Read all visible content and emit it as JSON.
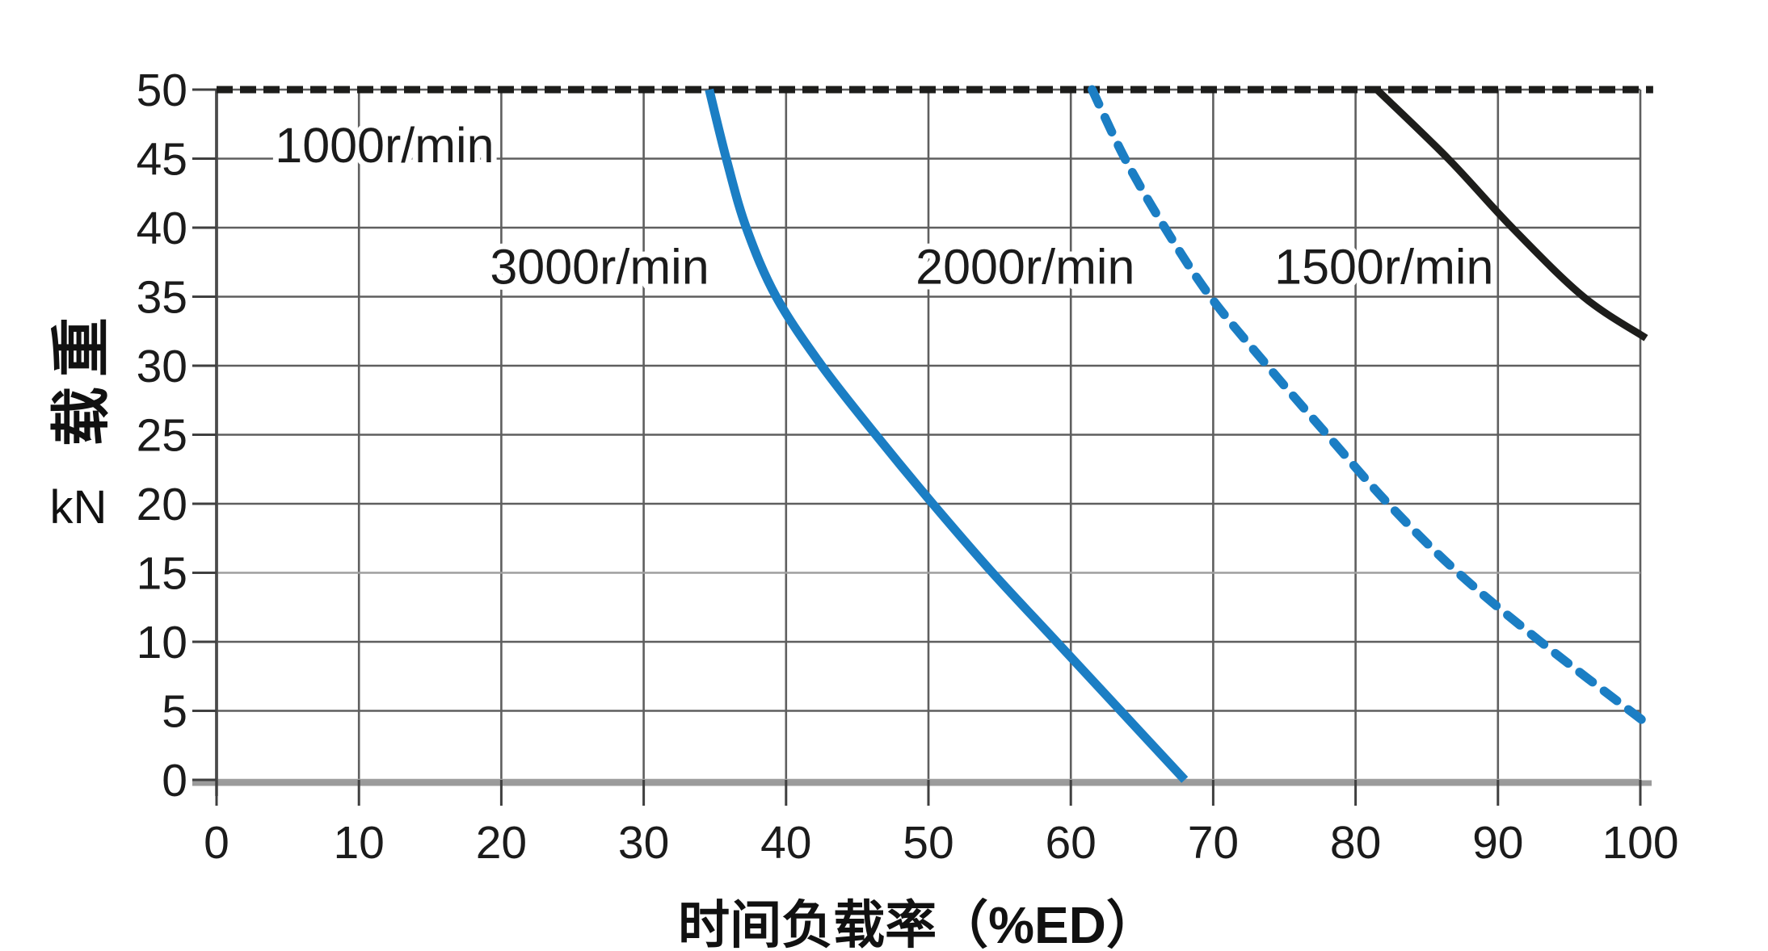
{
  "figure": {
    "background": "#ffffff",
    "grid_color": "#5f5f5f",
    "axis_line_color": "#9b9b9b",
    "tick_color": "#3f3f3f",
    "text_color": "#1b1b1b",
    "accent_blue": "#1b7ec4",
    "curve_black": "#1d1d1b"
  },
  "chart_data": {
    "type": "line",
    "title": "",
    "xlabel": "时间负载率（%ED）",
    "ylabel": "载重",
    "ylabel_unit": "kN",
    "xlim": [
      0,
      100
    ],
    "ylim": [
      0,
      50
    ],
    "x_ticks": [
      0,
      10,
      20,
      30,
      40,
      50,
      60,
      70,
      80,
      90,
      100
    ],
    "y_ticks": [
      0,
      5,
      10,
      15,
      20,
      25,
      30,
      35,
      40,
      45,
      50
    ],
    "grid": true,
    "legend_position": "inline-annotations",
    "series": [
      {
        "name": "1000r/min",
        "color": "#1d1d1b",
        "line": "dashed",
        "width": 9,
        "dash": [
          20,
          9
        ],
        "points": [
          [
            0,
            50
          ],
          [
            100.9,
            50
          ]
        ],
        "label_pos": [
          11.8,
          46
        ]
      },
      {
        "name": "3000r/min",
        "color": "#1b7ec4",
        "line": "solid",
        "width": 11,
        "points": [
          [
            34.6,
            50
          ],
          [
            35.8,
            45
          ],
          [
            37.2,
            40
          ],
          [
            39.3,
            35
          ],
          [
            42.5,
            30
          ],
          [
            46.3,
            25
          ],
          [
            50.3,
            20
          ],
          [
            54.5,
            15
          ],
          [
            59,
            10
          ],
          [
            63.5,
            5
          ],
          [
            68,
            0
          ]
        ],
        "label_pos": [
          26.9,
          37.2
        ]
      },
      {
        "name": "2000r/min",
        "color": "#1b7ec4",
        "line": "dashed",
        "width": 11,
        "dash": [
          20,
          18
        ],
        "points": [
          [
            61.5,
            50
          ],
          [
            63.8,
            45
          ],
          [
            66.6,
            40
          ],
          [
            69.8,
            35
          ],
          [
            73.8,
            30
          ],
          [
            78,
            25
          ],
          [
            82.3,
            20
          ],
          [
            87.2,
            15
          ],
          [
            93,
            10
          ],
          [
            100.8,
            3.8
          ]
        ],
        "label_pos": [
          56.8,
          37.2
        ]
      },
      {
        "name": "1500r/min",
        "color": "#1d1d1b",
        "line": "solid",
        "width": 9,
        "points": [
          [
            81.5,
            50
          ],
          [
            86.5,
            45
          ],
          [
            91,
            40
          ],
          [
            96,
            35
          ],
          [
            100.4,
            32
          ]
        ],
        "label_pos": [
          82,
          37.2
        ]
      }
    ]
  }
}
